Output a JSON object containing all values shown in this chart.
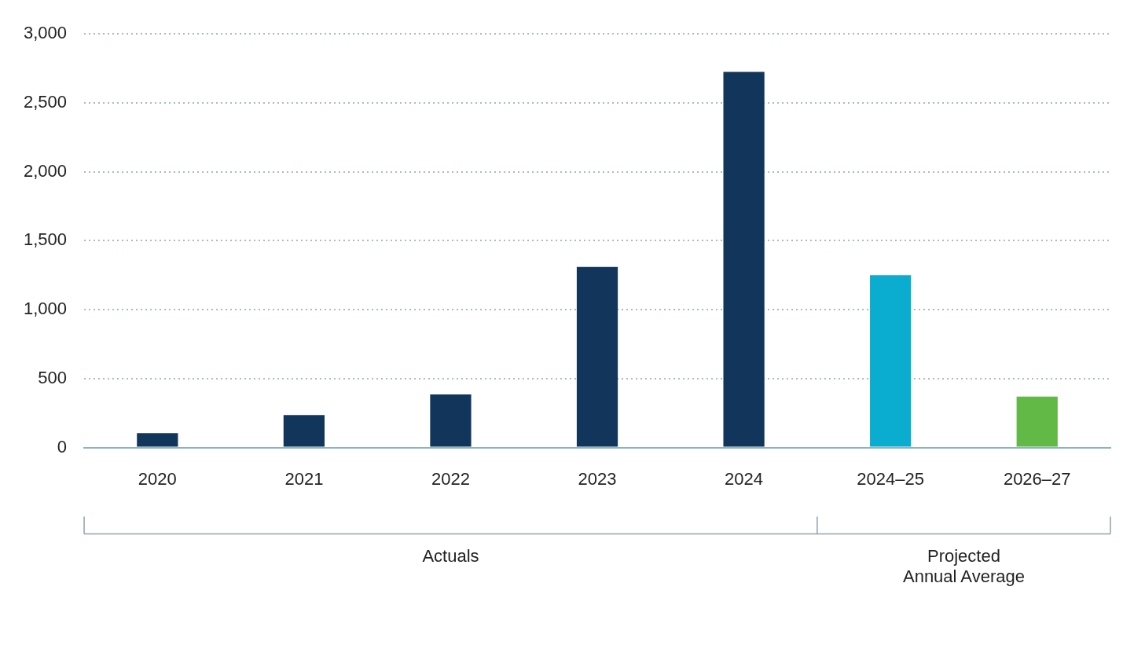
{
  "chart_data": {
    "type": "bar",
    "categories": [
      "2020",
      "2021",
      "2022",
      "2023",
      "2024",
      "2024–25",
      "2026–27"
    ],
    "values": [
      105,
      235,
      385,
      1310,
      2725,
      1250,
      370
    ],
    "colors": [
      "#12365b",
      "#12365b",
      "#12365b",
      "#12365b",
      "#12365b",
      "#0aadcf",
      "#62b946"
    ],
    "ylim": [
      0,
      3000
    ],
    "yticks": [
      0,
      {
        "value": 500,
        "label": "500"
      },
      {
        "value": 1000,
        "label": "1,000"
      },
      {
        "value": 1500,
        "label": "1,500"
      },
      {
        "value": 2000,
        "label": "2,000"
      },
      {
        "value": 2500,
        "label": "2,500"
      },
      {
        "value": 3000,
        "label": "3,000"
      }
    ],
    "grid": "y",
    "annotations": [
      "Actuals",
      "Projected\nAnnual Average"
    ]
  }
}
